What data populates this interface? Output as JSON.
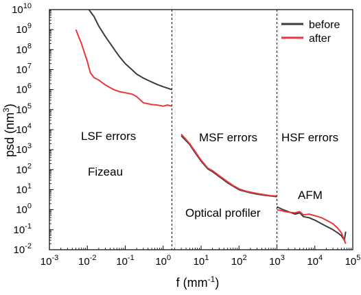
{
  "chart_data": {
    "type": "line",
    "xlabel": "f (mm",
    "xlabel_sup": "-1",
    "xlabel_end": ")",
    "ylabel": "psd (nm",
    "ylabel_sup": "3",
    "ylabel_end": ")",
    "x_scale": "log",
    "y_scale": "log",
    "xlim": [
      0.001,
      100000
    ],
    "ylim": [
      0.01,
      10000000000
    ],
    "grid": false,
    "legend_position": "top-right",
    "x_ticks": [
      {
        "base": "10",
        "exp": "-3"
      },
      {
        "base": "10",
        "exp": "-2"
      },
      {
        "base": "10",
        "exp": "-1"
      },
      {
        "base": "10",
        "exp": "0"
      },
      {
        "base": "10",
        "exp": "1"
      },
      {
        "base": "10",
        "exp": "2"
      },
      {
        "base": "10",
        "exp": "3"
      },
      {
        "base": "10",
        "exp": "4"
      },
      {
        "base": "10",
        "exp": "5"
      }
    ],
    "y_ticks": [
      {
        "base": "10",
        "exp": "-2"
      },
      {
        "base": "10",
        "exp": "-1"
      },
      {
        "base": "10",
        "exp": "0"
      },
      {
        "base": "10",
        "exp": "1"
      },
      {
        "base": "10",
        "exp": "2"
      },
      {
        "base": "10",
        "exp": "3"
      },
      {
        "base": "10",
        "exp": "4"
      },
      {
        "base": "10",
        "exp": "5"
      },
      {
        "base": "10",
        "exp": "6"
      },
      {
        "base": "10",
        "exp": "7"
      },
      {
        "base": "10",
        "exp": "8"
      },
      {
        "base": "10",
        "exp": "9"
      },
      {
        "base": "10",
        "exp": "10"
      }
    ],
    "region_dividers_x": [
      1.7,
      1000
    ],
    "annotations": {
      "lsf": "LSF errors",
      "fizeau": "Fizeau",
      "msf": "MSF errors",
      "optical": "Optical profiler",
      "hsf": "HSF errors",
      "afm": "AFM"
    },
    "series": [
      {
        "name": "before",
        "color": "#3a3a3a",
        "segments": [
          {
            "x": [
              0.011,
              0.015,
              0.02,
              0.03,
              0.05,
              0.07,
              0.1,
              0.15,
              0.2,
              0.3,
              0.5,
              0.7,
              1.0,
              1.3,
              1.7
            ],
            "y": [
              10000000000,
              4500000000,
              1500000000,
              450000000,
              110000000,
              45000000,
              20000000,
              10000000,
              6000000,
              3800000,
              2400000,
              1800000,
              1400000,
              1200000,
              1000000
            ]
          },
          {
            "x": [
              3,
              5,
              7,
              10,
              15,
              20,
              30,
              50,
              70,
              100,
              150,
              200,
              300,
              500,
              700,
              1000
            ],
            "y": [
              5000,
              1800,
              700,
              270,
              110,
              80,
              45,
              22,
              15,
              10,
              8,
              7,
              6,
              5.2,
              4.8,
              4.5
            ]
          },
          {
            "x": [
              1000,
              1300,
              1700,
              2000,
              3000,
              4000,
              5000,
              7000,
              10000,
              15000,
              20000,
              30000,
              40000,
              50000,
              60000,
              65000
            ],
            "y": [
              1.4,
              1.1,
              0.9,
              0.8,
              0.6,
              0.7,
              0.45,
              0.4,
              0.3,
              0.2,
              0.15,
              0.1,
              0.07,
              0.05,
              0.03,
              0.08
            ]
          }
        ]
      },
      {
        "name": "after",
        "color": "#e8363a",
        "segments": [
          {
            "x": [
              0.005,
              0.007,
              0.01,
              0.012,
              0.015,
              0.02,
              0.03,
              0.05,
              0.07,
              0.1,
              0.15,
              0.2,
              0.3,
              0.5,
              0.7,
              1.0,
              1.3,
              1.7
            ],
            "y": [
              1000000000,
              200000000,
              25000000,
              7000000,
              4000000,
              3000000,
              1700000,
              1000000,
              800000,
              700000,
              600000,
              450000,
              220000,
              180000,
              170000,
              150000,
              170000,
              150000
            ]
          },
          {
            "x": [
              3,
              5,
              7,
              10,
              15,
              20,
              30,
              50,
              70,
              100,
              150,
              200,
              300,
              500,
              700,
              1000
            ],
            "y": [
              6000,
              2000,
              800,
              300,
              120,
              90,
              50,
              25,
              16,
              11,
              8.5,
              7.5,
              6.5,
              5.5,
              5,
              4.8
            ]
          },
          {
            "x": [
              1000,
              1300,
              1700,
              2000,
              3000,
              4000,
              5000,
              7000,
              10000,
              15000,
              20000,
              30000,
              40000,
              50000,
              60000,
              65000
            ],
            "y": [
              1.0,
              0.9,
              0.8,
              0.75,
              0.7,
              0.8,
              0.55,
              0.6,
              0.5,
              0.4,
              0.3,
              0.2,
              0.12,
              0.07,
              0.03,
              0.02
            ]
          }
        ]
      }
    ]
  }
}
